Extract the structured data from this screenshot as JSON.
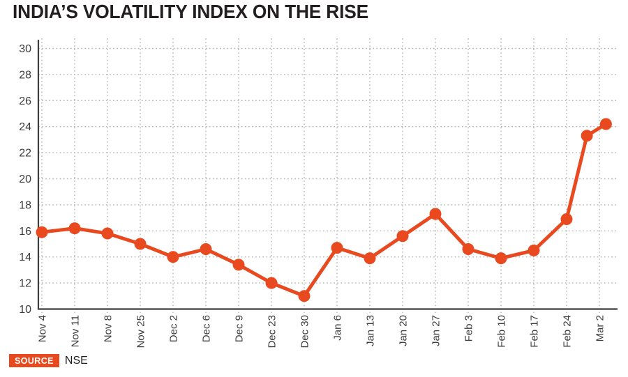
{
  "header": {
    "title": "INDIA’S VOLATILITY INDEX ON THE RISE"
  },
  "footer": {
    "source_label": "SOURCE",
    "source_value": "NSE"
  },
  "colors": {
    "accent": "#E8491F",
    "title_text": "#231F20",
    "axis": "#3D3D3F",
    "grid": "#B3B3B3",
    "tick_text": "#3D3D3F",
    "background": "#FFFFFF"
  },
  "chart_data": {
    "type": "line",
    "title": "INDIA’S VOLATILITY INDEX ON THE RISE",
    "categories": [
      "Nov 4",
      "Nov 11",
      "Nov 8",
      "Nov 25",
      "Dec 2",
      "Dec 6",
      "Dec 9",
      "Dec 23",
      "Dec 30",
      "Jan 6",
      "Jan 13",
      "Jan 20",
      "Jan 27",
      "Feb 3",
      "Feb 10",
      "Feb 17",
      "Feb 24",
      "Mar 2"
    ],
    "series": [
      {
        "name": "volatility-index",
        "x": [
          0,
          1,
          2,
          3,
          4,
          5,
          6,
          7,
          8,
          9,
          10,
          11,
          12,
          13,
          14,
          15,
          16,
          16.62,
          17.2
        ],
        "values": [
          15.9,
          16.2,
          15.8,
          15.0,
          14.0,
          14.6,
          13.4,
          12.0,
          11.0,
          14.7,
          13.9,
          15.6,
          17.3,
          14.6,
          13.9,
          14.5,
          16.9,
          23.3,
          24.2
        ]
      }
    ],
    "yticks": [
      10,
      12,
      14,
      16,
      18,
      20,
      22,
      24,
      26,
      28,
      30
    ],
    "ylim": [
      10,
      30
    ],
    "xlabel": "",
    "ylabel": "",
    "grid": "dotted-both",
    "legend": "none",
    "marker": "circle",
    "line_color": "#E8491F",
    "note": "second-to-last data point has no x-axis tick label"
  }
}
